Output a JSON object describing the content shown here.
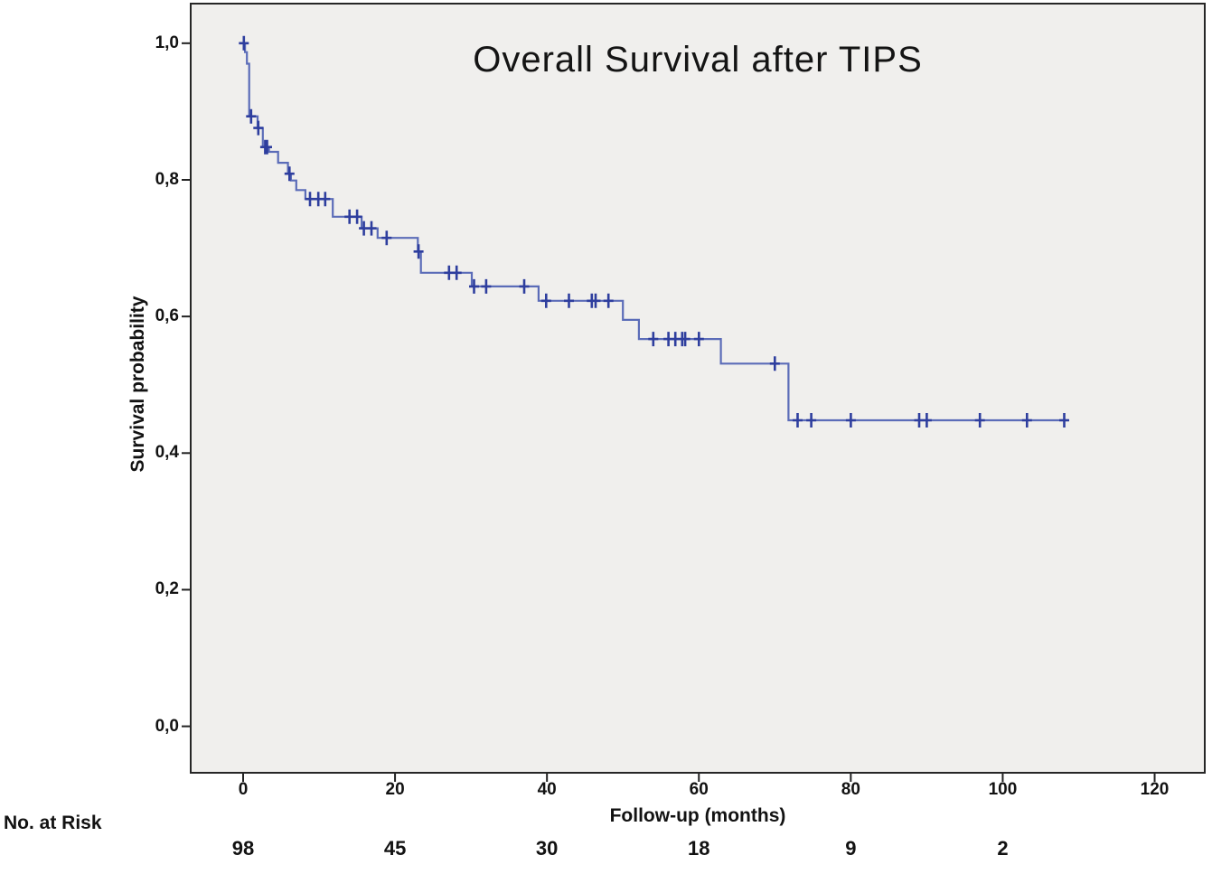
{
  "chart_data": {
    "type": "line",
    "subtype": "kaplan-meier-step",
    "title": "Overall Survival after TIPS",
    "xlabel": "Follow-up (months)",
    "ylabel": "Survival probability",
    "grid": false,
    "legend": "none",
    "decimal_separator": ",",
    "xlim": [
      -6.9,
      126.6
    ],
    "ylim": [
      -0.068,
      1.058
    ],
    "x_ticks": [
      0,
      20,
      40,
      60,
      80,
      100,
      120
    ],
    "y_ticks": [
      {
        "value": 0.0,
        "label": "0,0"
      },
      {
        "value": 0.2,
        "label": "0,2"
      },
      {
        "value": 0.4,
        "label": "0,4"
      },
      {
        "value": 0.6,
        "label": "0,6"
      },
      {
        "value": 0.8,
        "label": "0,8"
      },
      {
        "value": 1.0,
        "label": "1,0"
      }
    ],
    "plot_background": "#f0efed",
    "frame_color": "#262626",
    "series": [
      {
        "name": "Overall survival",
        "color": "#5b6cb8",
        "censor_color": "#2e3e9e",
        "start": {
          "t": 0,
          "s": 1.0
        },
        "end_t": 108.6,
        "steps": [
          {
            "t": 0.25,
            "s": 0.987
          },
          {
            "t": 0.5,
            "s": 0.97
          },
          {
            "t": 0.8,
            "s": 0.893
          },
          {
            "t": 1.9,
            "s": 0.876
          },
          {
            "t": 2.6,
            "s": 0.848
          },
          {
            "t": 3.4,
            "s": 0.841
          },
          {
            "t": 4.6,
            "s": 0.825
          },
          {
            "t": 5.9,
            "s": 0.809
          },
          {
            "t": 6.3,
            "s": 0.799
          },
          {
            "t": 7.0,
            "s": 0.785
          },
          {
            "t": 8.2,
            "s": 0.772
          },
          {
            "t": 11.8,
            "s": 0.746
          },
          {
            "t": 15.6,
            "s": 0.729
          },
          {
            "t": 17.7,
            "s": 0.715
          },
          {
            "t": 23.0,
            "s": 0.695
          },
          {
            "t": 23.4,
            "s": 0.664
          },
          {
            "t": 30.1,
            "s": 0.644
          },
          {
            "t": 38.9,
            "s": 0.623
          },
          {
            "t": 50.0,
            "s": 0.595
          },
          {
            "t": 52.1,
            "s": 0.567
          },
          {
            "t": 62.9,
            "s": 0.531
          },
          {
            "t": 71.8,
            "s": 0.448
          }
        ],
        "censors": [
          {
            "t": 0.1,
            "s": 1.0
          },
          {
            "t": 1.05,
            "s": 0.893
          },
          {
            "t": 2.0,
            "s": 0.876
          },
          {
            "t": 2.9,
            "s": 0.848
          },
          {
            "t": 3.15,
            "s": 0.848
          },
          {
            "t": 6.1,
            "s": 0.809
          },
          {
            "t": 8.8,
            "s": 0.772
          },
          {
            "t": 9.9,
            "s": 0.772
          },
          {
            "t": 10.8,
            "s": 0.772
          },
          {
            "t": 14.0,
            "s": 0.746
          },
          {
            "t": 15.0,
            "s": 0.746
          },
          {
            "t": 15.9,
            "s": 0.729
          },
          {
            "t": 16.9,
            "s": 0.729
          },
          {
            "t": 18.9,
            "s": 0.715
          },
          {
            "t": 23.1,
            "s": 0.695
          },
          {
            "t": 27.1,
            "s": 0.664
          },
          {
            "t": 28.1,
            "s": 0.664
          },
          {
            "t": 30.4,
            "s": 0.644
          },
          {
            "t": 32.0,
            "s": 0.644
          },
          {
            "t": 37.0,
            "s": 0.644
          },
          {
            "t": 39.9,
            "s": 0.623
          },
          {
            "t": 42.9,
            "s": 0.623
          },
          {
            "t": 45.9,
            "s": 0.623
          },
          {
            "t": 46.4,
            "s": 0.623
          },
          {
            "t": 48.1,
            "s": 0.623
          },
          {
            "t": 54.0,
            "s": 0.567
          },
          {
            "t": 56.0,
            "s": 0.567
          },
          {
            "t": 56.9,
            "s": 0.567
          },
          {
            "t": 57.8,
            "s": 0.567
          },
          {
            "t": 58.2,
            "s": 0.567
          },
          {
            "t": 60.0,
            "s": 0.567
          },
          {
            "t": 70.0,
            "s": 0.531
          },
          {
            "t": 73.0,
            "s": 0.448
          },
          {
            "t": 74.8,
            "s": 0.448
          },
          {
            "t": 80.0,
            "s": 0.448
          },
          {
            "t": 89.0,
            "s": 0.448
          },
          {
            "t": 90.0,
            "s": 0.448
          },
          {
            "t": 97.0,
            "s": 0.448
          },
          {
            "t": 103.2,
            "s": 0.448
          },
          {
            "t": 108.1,
            "s": 0.448
          }
        ]
      }
    ]
  },
  "risk_table": {
    "label": "No. at Risk",
    "times": [
      0,
      20,
      40,
      60,
      80,
      100
    ],
    "counts": [
      "98",
      "45",
      "30",
      "18",
      "9",
      "2"
    ]
  }
}
